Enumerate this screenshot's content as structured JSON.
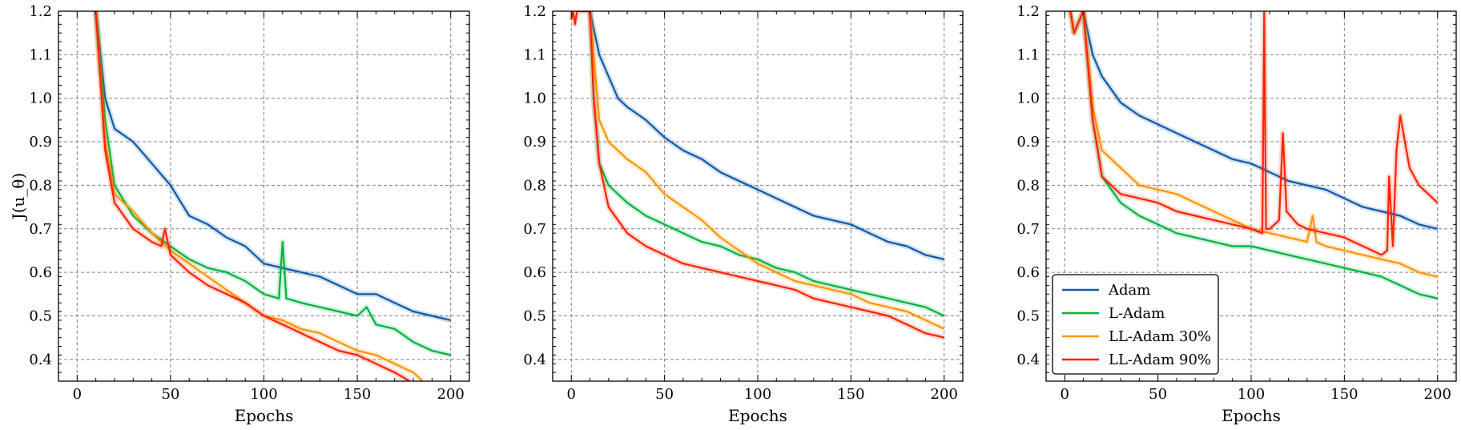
{
  "chart_data": [
    {
      "type": "line",
      "xlabel": "Epochs",
      "ylabel": "J(u_θ)",
      "xlim": [
        -10,
        210
      ],
      "ylim": [
        0.35,
        1.2
      ],
      "xticks": [
        "0",
        "50",
        "100",
        "150",
        "200"
      ],
      "yticks": [
        "0.4",
        "0.5",
        "0.6",
        "0.7",
        "0.8",
        "0.9",
        "1.0",
        "1.1",
        "1.2"
      ],
      "grid": true,
      "series": [
        {
          "name": "Adam",
          "color": "#0d5aa7",
          "x": [
            10,
            15,
            20,
            30,
            40,
            50,
            60,
            70,
            80,
            90,
            100,
            110,
            120,
            130,
            140,
            150,
            160,
            170,
            180,
            190,
            200
          ],
          "values": [
            1.2,
            1.0,
            0.93,
            0.9,
            0.85,
            0.8,
            0.73,
            0.71,
            0.68,
            0.66,
            0.62,
            0.61,
            0.6,
            0.59,
            0.57,
            0.55,
            0.55,
            0.53,
            0.51,
            0.5,
            0.49
          ]
        },
        {
          "name": "L-Adam",
          "color": "#00b140",
          "x": [
            10,
            15,
            20,
            30,
            40,
            50,
            60,
            70,
            80,
            90,
            100,
            108,
            110,
            112,
            120,
            130,
            140,
            150,
            155,
            160,
            170,
            180,
            190,
            200
          ],
          "values": [
            1.2,
            0.95,
            0.8,
            0.73,
            0.69,
            0.66,
            0.63,
            0.61,
            0.6,
            0.58,
            0.55,
            0.54,
            0.67,
            0.54,
            0.53,
            0.52,
            0.51,
            0.5,
            0.52,
            0.48,
            0.47,
            0.44,
            0.42,
            0.41
          ]
        },
        {
          "name": "LL-Adam 30%",
          "color": "#ff9500",
          "x": [
            10,
            15,
            20,
            30,
            40,
            50,
            60,
            70,
            80,
            90,
            100,
            110,
            120,
            130,
            140,
            150,
            160,
            170,
            180,
            185
          ],
          "values": [
            1.2,
            0.9,
            0.78,
            0.74,
            0.69,
            0.65,
            0.62,
            0.59,
            0.56,
            0.53,
            0.5,
            0.49,
            0.47,
            0.46,
            0.44,
            0.42,
            0.41,
            0.39,
            0.37,
            0.35
          ]
        },
        {
          "name": "LL-Adam 90%",
          "color": "#ff2200",
          "x": [
            10,
            15,
            20,
            30,
            40,
            45,
            47,
            50,
            60,
            70,
            80,
            90,
            100,
            110,
            120,
            130,
            140,
            150,
            160,
            170,
            178
          ],
          "values": [
            1.2,
            0.88,
            0.76,
            0.7,
            0.67,
            0.66,
            0.7,
            0.64,
            0.6,
            0.57,
            0.55,
            0.53,
            0.5,
            0.48,
            0.46,
            0.44,
            0.42,
            0.41,
            0.39,
            0.37,
            0.35
          ]
        }
      ]
    },
    {
      "type": "line",
      "xlabel": "Epochs",
      "ylabel": "",
      "xlim": [
        -10,
        210
      ],
      "ylim": [
        0.35,
        1.2
      ],
      "xticks": [
        "0",
        "50",
        "100",
        "150",
        "200"
      ],
      "yticks": [
        "0.4",
        "0.5",
        "0.6",
        "0.7",
        "0.8",
        "0.9",
        "1.0",
        "1.1",
        "1.2"
      ],
      "grid": true,
      "series": [
        {
          "name": "Adam",
          "color": "#0d5aa7",
          "x": [
            10,
            15,
            20,
            25,
            30,
            40,
            50,
            60,
            70,
            80,
            90,
            100,
            110,
            120,
            130,
            140,
            150,
            160,
            170,
            180,
            190,
            200
          ],
          "values": [
            1.2,
            1.1,
            1.05,
            1.0,
            0.98,
            0.95,
            0.91,
            0.88,
            0.86,
            0.83,
            0.81,
            0.79,
            0.77,
            0.75,
            0.73,
            0.72,
            0.71,
            0.69,
            0.67,
            0.66,
            0.64,
            0.63
          ]
        },
        {
          "name": "L-Adam",
          "color": "#00b140",
          "x": [
            10,
            12,
            15,
            20,
            30,
            40,
            50,
            60,
            70,
            80,
            90,
            100,
            110,
            120,
            130,
            140,
            150,
            160,
            170,
            180,
            190,
            200
          ],
          "values": [
            1.2,
            1.0,
            0.85,
            0.8,
            0.76,
            0.73,
            0.71,
            0.69,
            0.67,
            0.66,
            0.64,
            0.63,
            0.61,
            0.6,
            0.58,
            0.57,
            0.56,
            0.55,
            0.54,
            0.53,
            0.52,
            0.5
          ]
        },
        {
          "name": "LL-Adam 30%",
          "color": "#ff9500",
          "x": [
            10,
            15,
            20,
            30,
            40,
            50,
            60,
            70,
            80,
            90,
            100,
            110,
            120,
            130,
            140,
            150,
            160,
            170,
            180,
            190,
            200
          ],
          "values": [
            1.2,
            0.95,
            0.9,
            0.86,
            0.83,
            0.78,
            0.75,
            0.72,
            0.68,
            0.65,
            0.62,
            0.6,
            0.58,
            0.57,
            0.56,
            0.55,
            0.53,
            0.52,
            0.51,
            0.49,
            0.47
          ]
        },
        {
          "name": "LL-Adam 90%",
          "color": "#ff2200",
          "x": [
            0,
            1,
            2,
            3,
            10,
            12,
            15,
            20,
            30,
            40,
            50,
            60,
            70,
            80,
            90,
            100,
            110,
            120,
            130,
            140,
            150,
            160,
            170,
            180,
            190,
            200
          ],
          "values": [
            1.18,
            1.2,
            1.17,
            1.2,
            1.2,
            1.0,
            0.85,
            0.75,
            0.69,
            0.66,
            0.64,
            0.62,
            0.61,
            0.6,
            0.59,
            0.58,
            0.57,
            0.56,
            0.54,
            0.53,
            0.52,
            0.51,
            0.5,
            0.48,
            0.46,
            0.45
          ]
        }
      ]
    },
    {
      "type": "line",
      "xlabel": "Epochs",
      "ylabel": "",
      "xlim": [
        -10,
        210
      ],
      "ylim": [
        0.35,
        1.2
      ],
      "xticks": [
        "0",
        "50",
        "100",
        "150",
        "200"
      ],
      "yticks": [
        "0.4",
        "0.5",
        "0.6",
        "0.7",
        "0.8",
        "0.9",
        "1.0",
        "1.1",
        "1.2"
      ],
      "grid": true,
      "legend_loc": "lower-left",
      "series": [
        {
          "name": "Adam",
          "color": "#0d5aa7",
          "x": [
            10,
            15,
            20,
            25,
            30,
            40,
            50,
            60,
            70,
            80,
            90,
            100,
            110,
            120,
            130,
            140,
            150,
            160,
            170,
            180,
            190,
            200
          ],
          "values": [
            1.2,
            1.1,
            1.05,
            1.02,
            0.99,
            0.96,
            0.94,
            0.92,
            0.9,
            0.88,
            0.86,
            0.85,
            0.83,
            0.81,
            0.8,
            0.79,
            0.77,
            0.75,
            0.74,
            0.73,
            0.71,
            0.7
          ]
        },
        {
          "name": "L-Adam",
          "color": "#00b140",
          "x": [
            3,
            5,
            10,
            15,
            20,
            30,
            40,
            50,
            60,
            70,
            80,
            90,
            100,
            110,
            120,
            130,
            140,
            150,
            160,
            170,
            180,
            190,
            200
          ],
          "values": [
            1.2,
            1.15,
            1.2,
            0.95,
            0.82,
            0.76,
            0.73,
            0.71,
            0.69,
            0.68,
            0.67,
            0.66,
            0.66,
            0.65,
            0.64,
            0.63,
            0.62,
            0.61,
            0.6,
            0.59,
            0.57,
            0.55,
            0.54
          ]
        },
        {
          "name": "LL-Adam 30%",
          "color": "#ff9500",
          "x": [
            3,
            5,
            10,
            15,
            20,
            30,
            40,
            50,
            60,
            70,
            80,
            90,
            100,
            110,
            120,
            130,
            133,
            135,
            140,
            150,
            160,
            170,
            180,
            190,
            200
          ],
          "values": [
            1.2,
            1.15,
            1.2,
            0.98,
            0.88,
            0.84,
            0.8,
            0.79,
            0.78,
            0.76,
            0.74,
            0.72,
            0.7,
            0.69,
            0.68,
            0.67,
            0.73,
            0.67,
            0.66,
            0.65,
            0.64,
            0.63,
            0.62,
            0.6,
            0.59
          ]
        },
        {
          "name": "LL-Adam 90%",
          "color": "#ff2200",
          "x": [
            3,
            5,
            10,
            15,
            20,
            30,
            40,
            50,
            60,
            70,
            80,
            90,
            100,
            106,
            107,
            108,
            110,
            115,
            117,
            119,
            125,
            130,
            140,
            150,
            160,
            170,
            173,
            174,
            176,
            178,
            180,
            185,
            190,
            195,
            200
          ],
          "values": [
            1.2,
            1.15,
            1.2,
            0.95,
            0.82,
            0.78,
            0.77,
            0.76,
            0.74,
            0.73,
            0.72,
            0.71,
            0.7,
            0.69,
            1.2,
            0.7,
            0.7,
            0.72,
            0.92,
            0.74,
            0.71,
            0.7,
            0.69,
            0.68,
            0.66,
            0.64,
            0.65,
            0.82,
            0.66,
            0.88,
            0.96,
            0.84,
            0.8,
            0.78,
            0.76
          ]
        }
      ]
    }
  ]
}
